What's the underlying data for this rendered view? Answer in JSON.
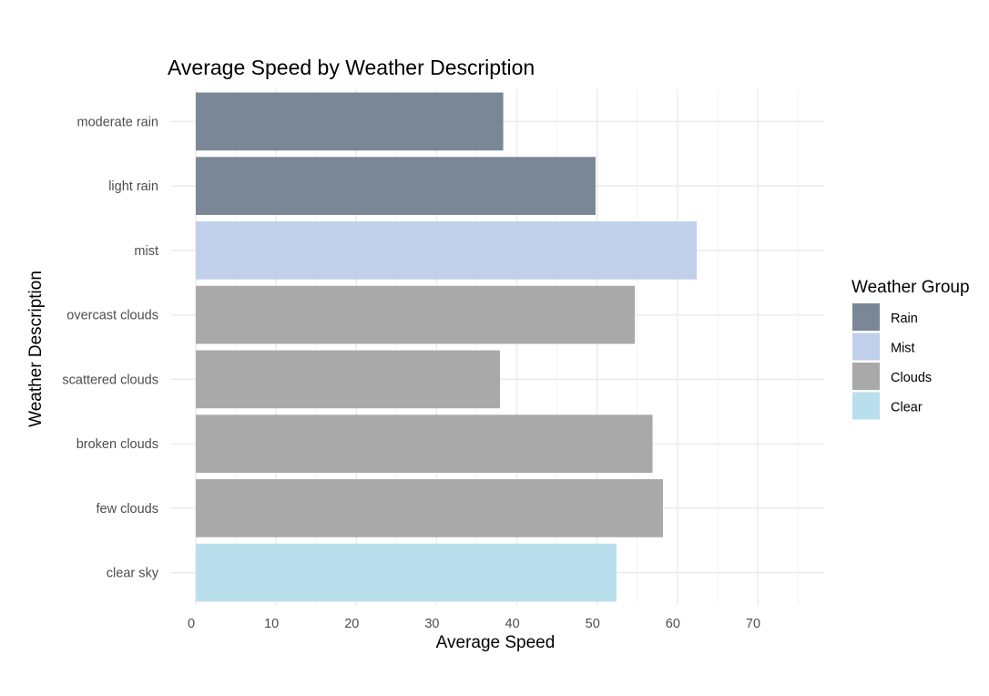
{
  "chart_data": {
    "type": "bar",
    "orientation": "horizontal",
    "title": "Average Speed by Weather Description",
    "xlabel": "Average Speed",
    "ylabel": "Weather Description",
    "xlim": [
      0,
      77
    ],
    "x_ticks": [
      0,
      10,
      20,
      30,
      40,
      50,
      60,
      70
    ],
    "grid": true,
    "categories": [
      "moderate rain",
      "light rain",
      "mist",
      "overcast clouds",
      "scattered clouds",
      "broken clouds",
      "few clouds",
      "clear sky"
    ],
    "values": [
      38.3,
      49.8,
      62.4,
      54.7,
      37.9,
      56.9,
      58.2,
      52.4
    ],
    "groups": [
      "Rain",
      "Rain",
      "Mist",
      "Clouds",
      "Clouds",
      "Clouds",
      "Clouds",
      "Clear"
    ],
    "legend": {
      "title": "Weather Group",
      "position": "right",
      "items": [
        {
          "label": "Rain",
          "color": "#7a8796"
        },
        {
          "label": "Mist",
          "color": "#c0d0ea"
        },
        {
          "label": "Clouds",
          "color": "#a9a9a9"
        },
        {
          "label": "Clear",
          "color": "#badfec"
        }
      ]
    }
  }
}
